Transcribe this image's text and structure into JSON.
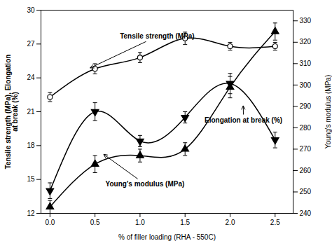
{
  "chart_data": {
    "type": "line",
    "xlabel": "% of filler loading (RHA - 550C)",
    "ylabel": "Tensile strength (MPa), Elongation\nat break (%)",
    "y2label": "Young's modulus (MPa)",
    "x": [
      0.0,
      0.5,
      1.0,
      1.5,
      2.0,
      2.5
    ],
    "series": [
      {
        "name": "Tensile strength (MPa)",
        "color": "black",
        "marker": "open_circle",
        "line_style": "solid",
        "values": [
          22.3,
          24.8,
          25.8,
          27.5,
          26.8,
          26.8
        ],
        "errors": [
          0.4,
          0.45,
          0.45,
          0.55,
          0.35,
          0.35
        ]
      },
      {
        "name": "Elongation at break (%)",
        "color": "black",
        "marker": "triangle_down",
        "line_style": "solid",
        "values": [
          14.0,
          21.0,
          18.4,
          20.5,
          23.5,
          18.5
        ],
        "errors": [
          0.7,
          0.8,
          0.5,
          0.5,
          0.9,
          0.7
        ]
      },
      {
        "name": "Young's modulus (MPa)",
        "color": "black",
        "marker": "triangle_up",
        "line_style": "solid",
        "axis": "y2",
        "values": [
          243,
          263,
          267,
          270,
          299,
          325
        ],
        "errors": [
          3,
          4,
          3,
          3,
          5,
          4
        ]
      }
    ],
    "xlim": [
      -0.1,
      2.7
    ],
    "xticks": [
      {
        "value": 0.0,
        "label": "0.0"
      },
      0.5,
      {
        "value": 1.0,
        "label": "1.0"
      },
      1.5,
      {
        "value": 2.0,
        "label": "2.0"
      },
      2.5
    ],
    "ylim": [
      12,
      30
    ],
    "yticks": [
      12,
      15,
      18,
      21,
      24,
      27,
      30
    ],
    "y2lim": [
      240,
      335
    ],
    "y2ticks": [
      240,
      250,
      260,
      270,
      280,
      290,
      300,
      310,
      320,
      330
    ],
    "grid": false,
    "annotations": [
      {
        "text": "Tensile strength (MPa)",
        "x": 0.45,
        "y": 24.85,
        "text_x": 0.78,
        "text_y": 27.6
      },
      {
        "text": "Young's modulus (MPa)",
        "x": 0.6,
        "y": 17.2,
        "text_x": 0.62,
        "text_y": 14.5
      },
      {
        "text": "Elongation at break (%)",
        "x": 2.15,
        "y": 21.5,
        "text_x": 1.72,
        "text_y": 20.2
      }
    ]
  }
}
